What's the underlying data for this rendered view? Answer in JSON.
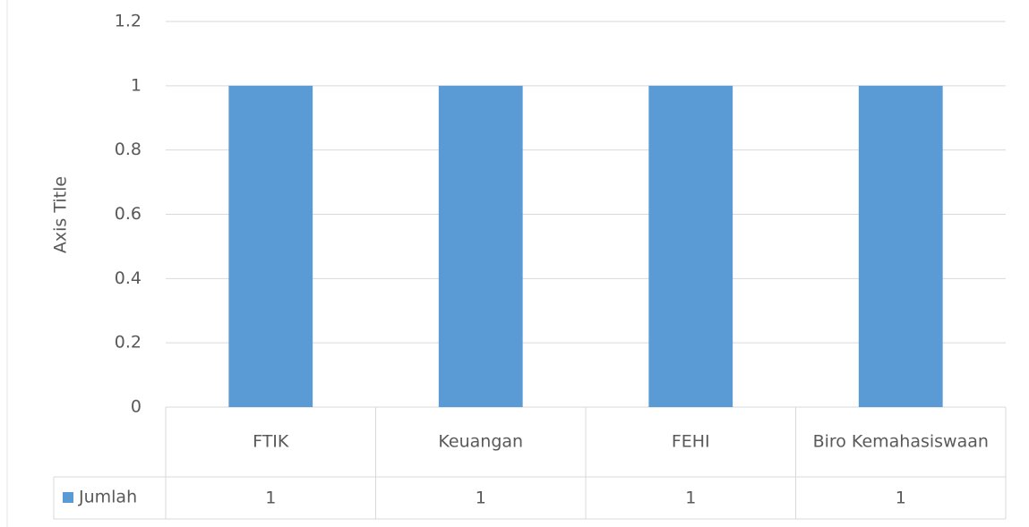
{
  "chart_data": {
    "type": "bar",
    "y_axis_label": "Axis Title",
    "categories": [
      "FTIK",
      "Keuangan",
      "FEHI",
      "Biro Kemahasiswaan"
    ],
    "series": [
      {
        "name": "Jumlah",
        "color": "#5b9bd5",
        "values": [
          1,
          1,
          1,
          1
        ]
      }
    ],
    "ylim": [
      0,
      1.2
    ],
    "yticks": [
      0,
      0.2,
      0.4,
      0.6,
      0.8,
      1,
      1.2
    ],
    "grid": true
  }
}
